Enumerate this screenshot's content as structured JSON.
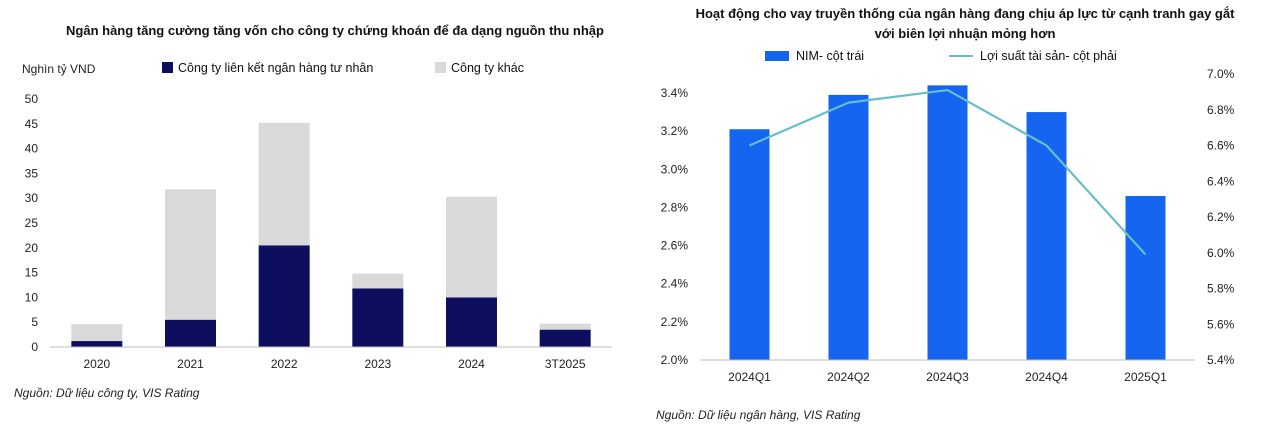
{
  "chart_data": [
    {
      "type": "bar",
      "stacked": true,
      "title": "Ngân hàng tăng cường tăng vốn cho công ty chứng khoán để đa dạng nguồn thu nhập",
      "ylabel": "Nghìn tỷ VND",
      "categories": [
        "2020",
        "2021",
        "2022",
        "2023",
        "2024",
        "3T2025"
      ],
      "series": [
        {
          "name": "Công ty liên kết ngân hàng tư nhân",
          "color": "#0d0f5e",
          "values": [
            1.2,
            5.5,
            20.5,
            11.8,
            10,
            3.5
          ]
        },
        {
          "name": "Công ty khác",
          "color": "#d9d9d9",
          "values": [
            3.4,
            26.3,
            24.7,
            3,
            20.3,
            1.2
          ]
        }
      ],
      "ylim": [
        0,
        50
      ],
      "yticks": [
        "0",
        "5",
        "10",
        "15",
        "20",
        "25",
        "30",
        "35",
        "40",
        "45",
        "50"
      ],
      "grid": false,
      "legend_position": "top",
      "source": "Nguồn: Dữ liệu công ty, VIS Rating"
    },
    {
      "type": "bar",
      "title_lines": [
        "Hoạt động cho vay truyền thống của ngân hàng đang chịu áp lực từ cạnh tranh gay gắt",
        "với biên lợi nhuận mỏng hơn"
      ],
      "categories": [
        "2024Q1",
        "2024Q2",
        "2024Q3",
        "2024Q4",
        "2025Q1"
      ],
      "series": [
        {
          "name": "NIM- cột trái",
          "type": "bar",
          "axis": "left",
          "color": "#1565f0",
          "values": [
            3.21,
            3.39,
            3.44,
            3.3,
            2.86
          ]
        },
        {
          "name": "Lợi suất tài sản- cột phải",
          "type": "line",
          "axis": "right",
          "color": "#67bec8",
          "values": [
            6.6,
            6.84,
            6.91,
            6.6,
            5.99
          ]
        }
      ],
      "ylim_left": [
        2.0,
        3.4
      ],
      "yticks_left": [
        "2.0%",
        "2.2%",
        "2.4%",
        "2.6%",
        "2.8%",
        "3.0%",
        "3.2%",
        "3.4%"
      ],
      "ylim_right": [
        5.4,
        7.0
      ],
      "yticks_right": [
        "5.4%",
        "5.6%",
        "5.8%",
        "6.0%",
        "6.2%",
        "6.4%",
        "6.6%",
        "6.8%",
        "7.0%"
      ],
      "grid": false,
      "legend_position": "top",
      "source": "Nguồn: Dữ liệu ngân hàng, VIS Rating"
    }
  ]
}
